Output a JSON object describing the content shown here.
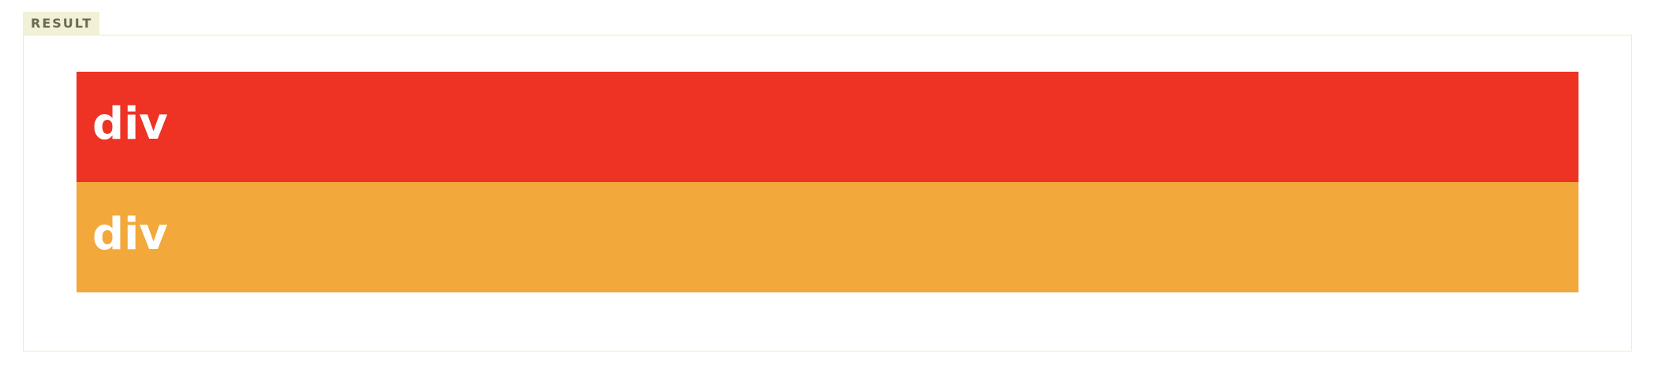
{
  "result_tab": {
    "label": "RESULT"
  },
  "boxes": [
    {
      "label": "div",
      "color": "#ee3224"
    },
    {
      "label": "div",
      "color": "#f2a83b"
    }
  ],
  "colors": {
    "tab_background": "#f2f0d6",
    "tab_text": "#6a6a4e",
    "frame_border": "#ecebc8"
  }
}
